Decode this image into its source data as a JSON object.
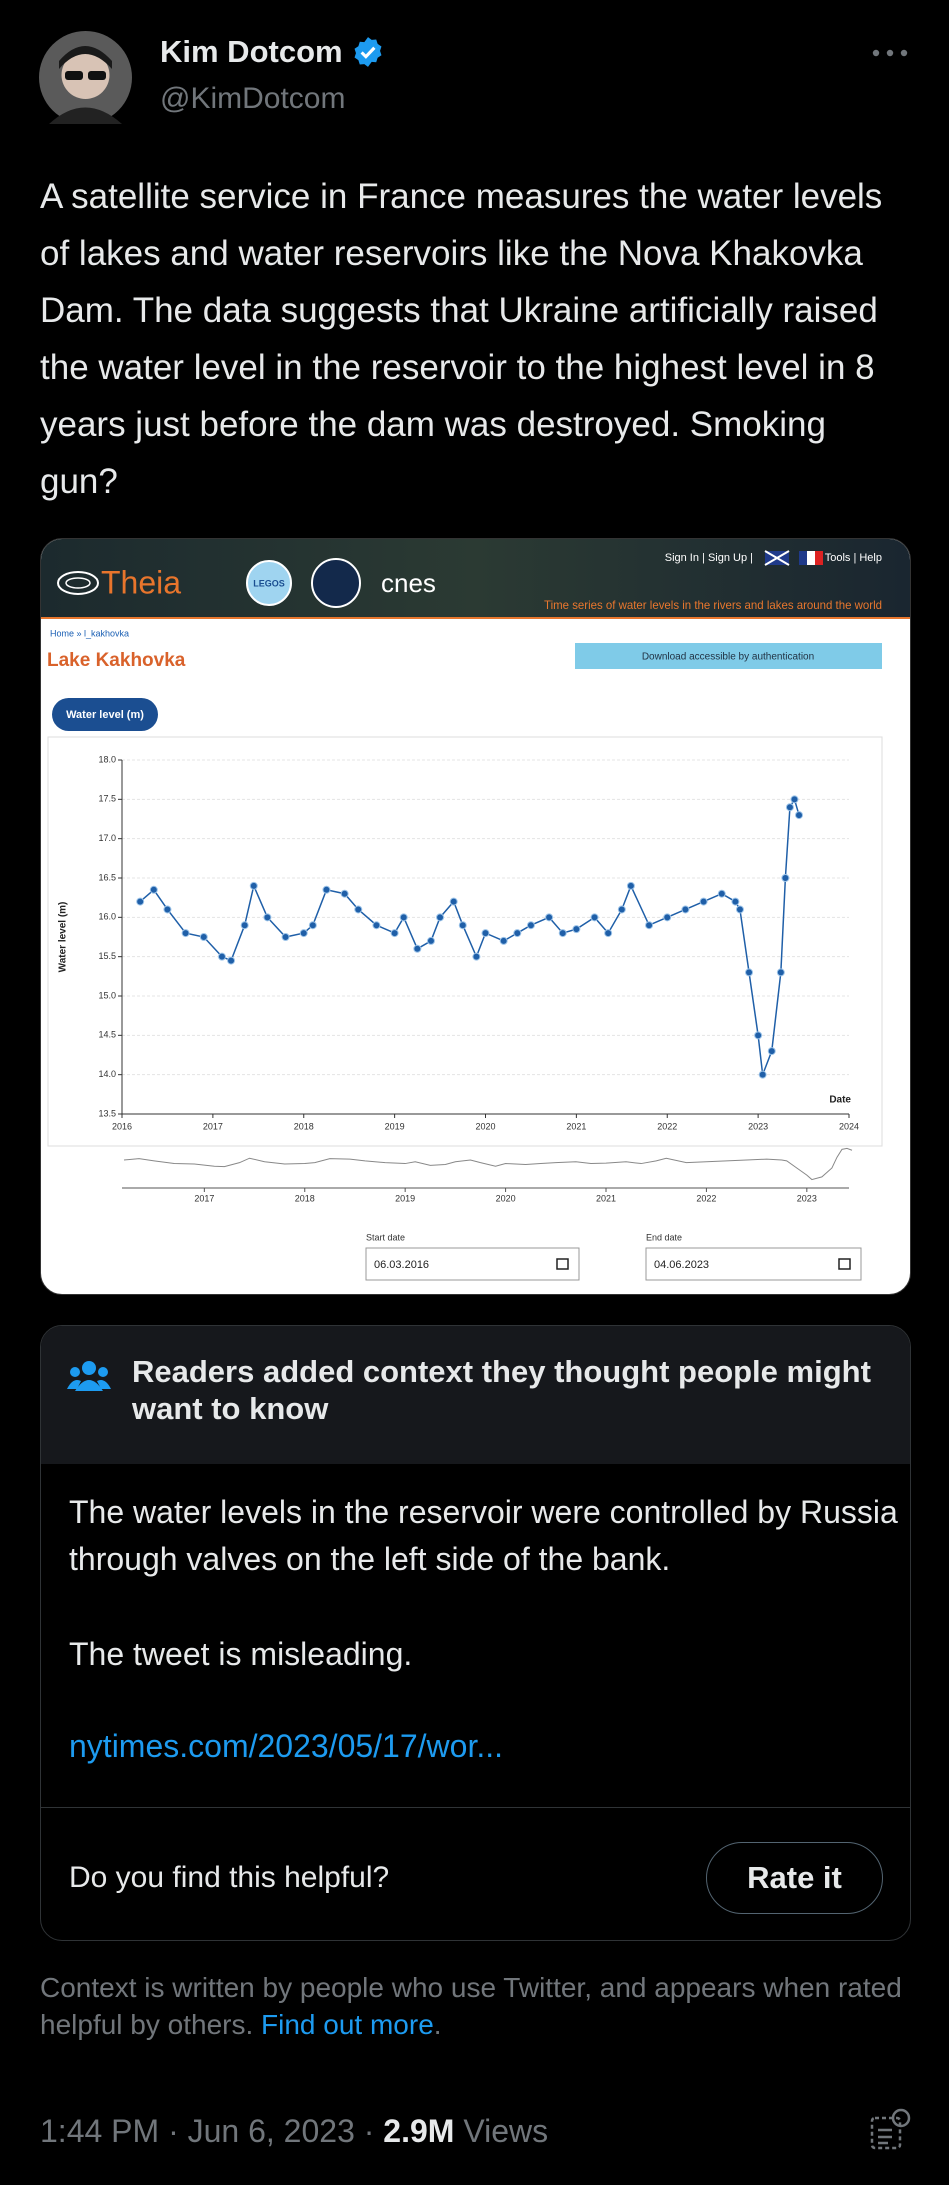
{
  "tweet": {
    "author_name": "Kim Dotcom",
    "handle": "@KimDotcom",
    "text": "A satellite service in France measures the water levels of lakes and water reservoirs like the Nova Khakovka Dam. The data suggests that Ukraine artificially raised the water level in the reservoir to the highest level in 8 years just before the dam was destroyed. Smoking gun?",
    "timestamp": "1:44 PM · Jun 6, 2023 ·",
    "views_count": "2.9M",
    "views_label": "Views"
  },
  "media": {
    "site_name": "Theia",
    "badge": "LEGOS",
    "partner": "cnes",
    "nav_left": "Sign In | Sign Up |",
    "nav_right": "Tools | Help",
    "tagline": "Time series of water levels in the rivers and lakes around the world",
    "breadcrumb": "Home » l_kakhovka",
    "page_title": "Lake Kakhovka",
    "download_button": "Download accessible by authentication",
    "tab": "Water level (m)",
    "chart_data": {
      "type": "line",
      "y_label": "Water level (m)",
      "x_label": "Date",
      "color": "#1f5fa8",
      "x": [
        2016.2,
        2016.35,
        2016.5,
        2016.7,
        2016.9,
        2017.1,
        2017.2,
        2017.35,
        2017.45,
        2017.6,
        2017.8,
        2018.0,
        2018.1,
        2018.25,
        2018.45,
        2018.6,
        2018.8,
        2019.0,
        2019.1,
        2019.25,
        2019.4,
        2019.5,
        2019.65,
        2019.75,
        2019.9,
        2020.0,
        2020.2,
        2020.35,
        2020.5,
        2020.7,
        2020.85,
        2021.0,
        2021.2,
        2021.35,
        2021.5,
        2021.6,
        2021.8,
        2022.0,
        2022.2,
        2022.4,
        2022.6,
        2022.75,
        2022.8,
        2022.9,
        2023.0,
        2023.05,
        2023.15,
        2023.25,
        2023.3,
        2023.35,
        2023.4,
        2023.45
      ],
      "values": [
        16.2,
        16.35,
        16.1,
        15.8,
        15.75,
        15.5,
        15.45,
        15.9,
        16.4,
        16.0,
        15.75,
        15.8,
        15.9,
        16.35,
        16.3,
        16.1,
        15.9,
        15.8,
        16.0,
        15.6,
        15.7,
        16.0,
        16.2,
        15.9,
        15.5,
        15.8,
        15.7,
        15.8,
        15.9,
        16.0,
        15.8,
        15.85,
        16.0,
        15.8,
        16.1,
        16.4,
        15.9,
        16.0,
        16.1,
        16.2,
        16.3,
        16.2,
        16.1,
        15.3,
        14.5,
        14.0,
        14.3,
        15.3,
        16.5,
        17.4,
        17.5,
        17.3
      ],
      "xlim": [
        2016,
        2024
      ],
      "xticks": [
        2016,
        2017,
        2018,
        2019,
        2020,
        2021,
        2022,
        2023,
        2024
      ],
      "ylim": [
        13.5,
        18
      ],
      "yticks": [
        {
          "value": 13.5,
          "label": "13.5"
        },
        {
          "value": 14,
          "label": "14.0"
        },
        14.5,
        {
          "value": 15,
          "label": "15.0"
        },
        15.5,
        {
          "value": 16,
          "label": "16.0"
        },
        16.5,
        {
          "value": 17,
          "label": "17.0"
        },
        17.5,
        {
          "value": 18,
          "label": "18.0"
        }
      ],
      "grid": true,
      "navigator_xlim": [
        2016.18,
        2023.42
      ],
      "navigator_xticks": [
        2017,
        2018,
        2019,
        2020,
        2021,
        2022,
        2023
      ]
    },
    "start_label": "Start date",
    "start_value": "06.03.2016",
    "end_label": "End date",
    "end_value": "04.06.2023"
  },
  "community_note": {
    "heading": "Readers added context they thought people might want to know",
    "body": "The water levels in the reservoir were controlled by Russia through valves on the left side of the bank.",
    "verdict": "The tweet is misleading.",
    "link": "nytimes.com/2023/05/17/wor...",
    "question": "Do you find this helpful?",
    "button": "Rate it"
  },
  "footer_note": {
    "text": "Context is written by people who use Twitter, and appears when rated helpful by others.",
    "link": "Find out more",
    "text_after_link": "."
  }
}
